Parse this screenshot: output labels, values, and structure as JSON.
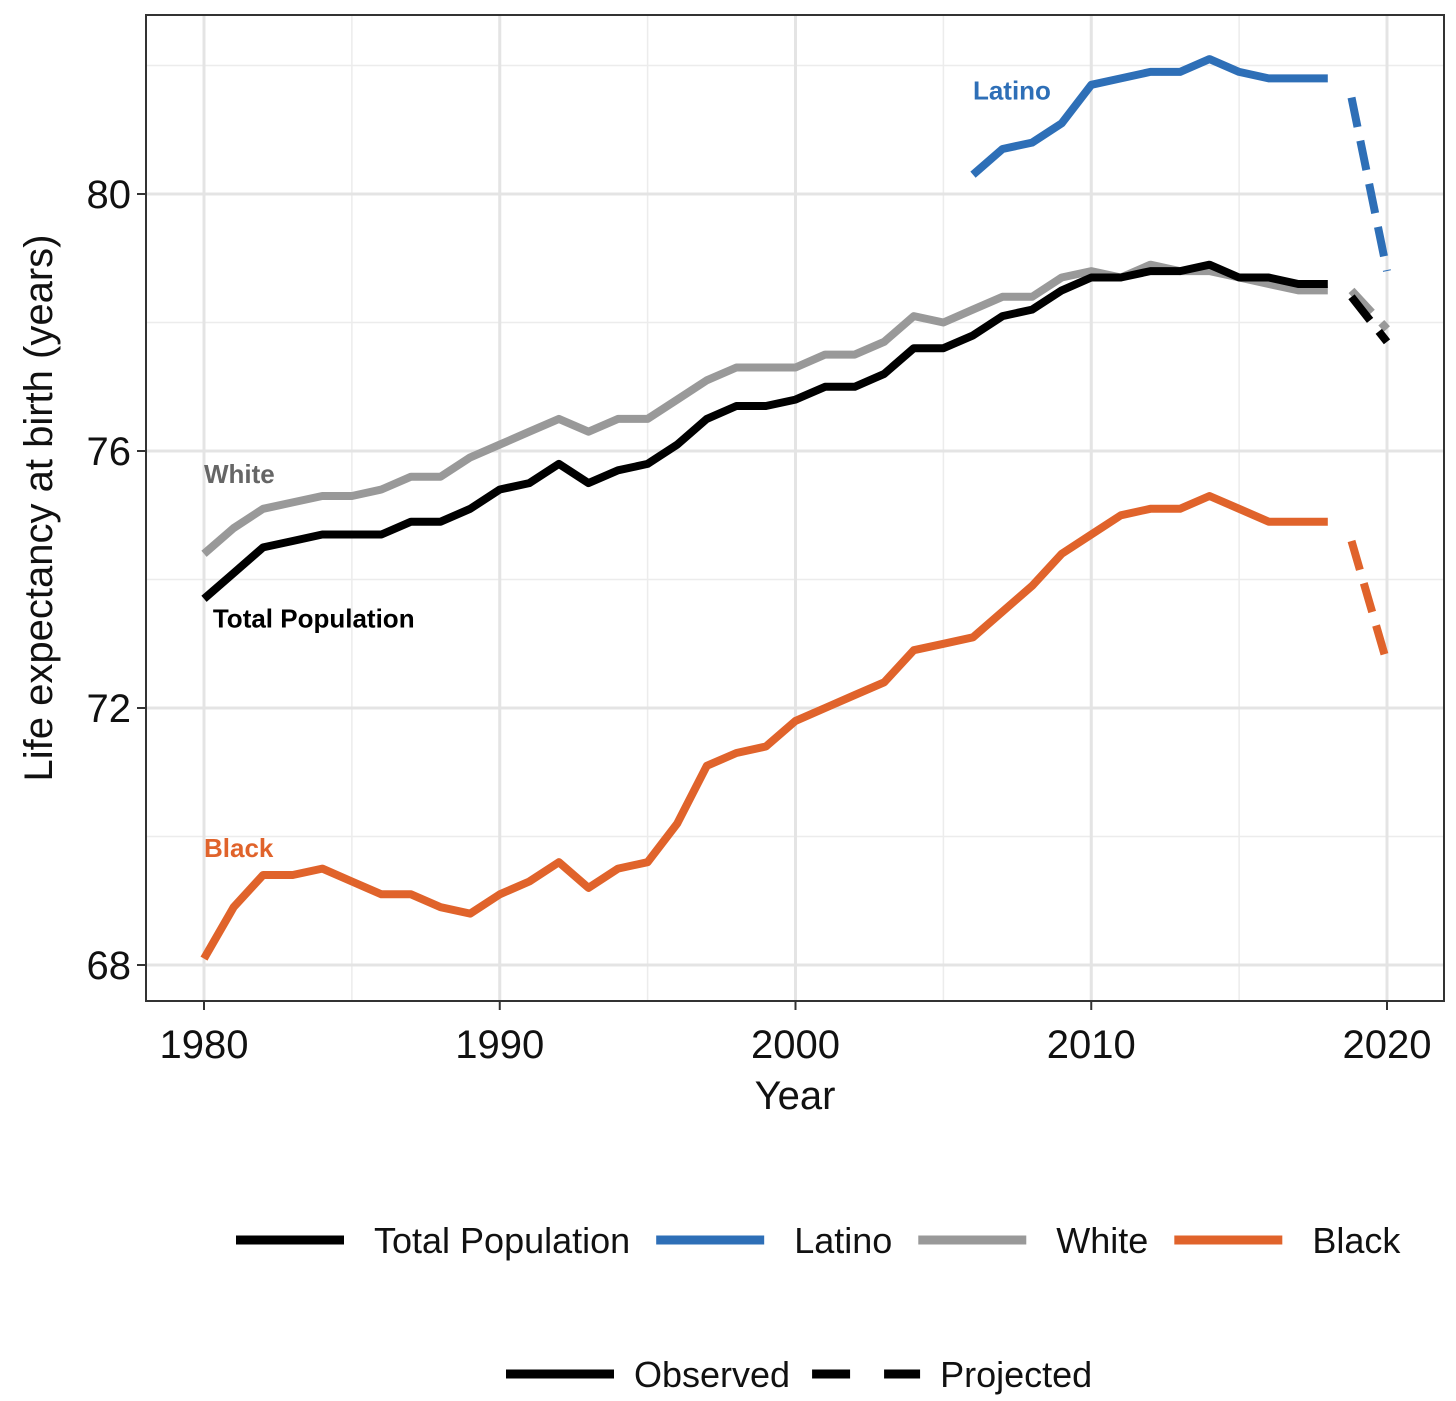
{
  "chart_data": {
    "type": "line",
    "xlabel": "Year",
    "ylabel": "Life expectancy at birth (years)",
    "xlim": [
      1978,
      2020
    ],
    "ylim": [
      67.5,
      82.9
    ],
    "x_ticks": [
      1980,
      1990,
      2000,
      2010,
      2020
    ],
    "y_ticks": [
      68,
      72,
      76,
      80
    ],
    "grid": true,
    "series": [
      {
        "name": "Total Population",
        "color": "#000000",
        "observed": {
          "x": [
            1980,
            1981,
            1982,
            1983,
            1984,
            1985,
            1986,
            1987,
            1988,
            1989,
            1990,
            1991,
            1992,
            1993,
            1994,
            1995,
            1996,
            1997,
            1998,
            1999,
            2000,
            2001,
            2002,
            2003,
            2004,
            2005,
            2006,
            2007,
            2008,
            2009,
            2010,
            2011,
            2012,
            2013,
            2014,
            2015,
            2016,
            2017,
            2018
          ],
          "y": [
            73.7,
            74.1,
            74.5,
            74.6,
            74.7,
            74.7,
            74.7,
            74.9,
            74.9,
            75.1,
            75.4,
            75.5,
            75.8,
            75.5,
            75.7,
            75.8,
            76.1,
            76.5,
            76.7,
            76.7,
            76.8,
            77.0,
            77.0,
            77.2,
            77.6,
            77.6,
            77.8,
            78.1,
            78.2,
            78.5,
            78.7,
            78.7,
            78.8,
            78.8,
            78.9,
            78.7,
            78.7,
            78.6,
            78.6
          ]
        },
        "projected": {
          "x": [
            2018.8,
            2020
          ],
          "y": [
            78.4,
            77.7
          ]
        }
      },
      {
        "name": "Latino",
        "color": "#2e6fb7",
        "observed": {
          "x": [
            2006,
            2007,
            2008,
            2009,
            2010,
            2011,
            2012,
            2013,
            2014,
            2015,
            2016,
            2017,
            2018
          ],
          "y": [
            80.3,
            80.7,
            80.8,
            81.1,
            81.7,
            81.8,
            81.9,
            81.9,
            82.1,
            81.9,
            81.8,
            81.8,
            81.8
          ]
        },
        "projected": {
          "x": [
            2018.8,
            2020
          ],
          "y": [
            81.5,
            78.8
          ]
        }
      },
      {
        "name": "White",
        "color": "#999999",
        "observed": {
          "x": [
            1980,
            1981,
            1982,
            1983,
            1984,
            1985,
            1986,
            1987,
            1988,
            1989,
            1990,
            1991,
            1992,
            1993,
            1994,
            1995,
            1996,
            1997,
            1998,
            1999,
            2000,
            2001,
            2002,
            2003,
            2004,
            2005,
            2006,
            2007,
            2008,
            2009,
            2010,
            2011,
            2012,
            2013,
            2014,
            2015,
            2016,
            2017,
            2018
          ],
          "y": [
            74.4,
            74.8,
            75.1,
            75.2,
            75.3,
            75.3,
            75.4,
            75.6,
            75.6,
            75.9,
            76.1,
            76.3,
            76.5,
            76.3,
            76.5,
            76.5,
            76.8,
            77.1,
            77.3,
            77.3,
            77.3,
            77.5,
            77.5,
            77.7,
            78.1,
            78.0,
            78.2,
            78.4,
            78.4,
            78.7,
            78.8,
            78.7,
            78.9,
            78.8,
            78.8,
            78.7,
            78.6,
            78.5,
            78.5
          ]
        },
        "projected": {
          "x": [
            2018.8,
            2020
          ],
          "y": [
            78.5,
            77.9
          ]
        }
      },
      {
        "name": "Black",
        "color": "#e0632b",
        "observed": {
          "x": [
            1980,
            1981,
            1982,
            1983,
            1984,
            1985,
            1986,
            1987,
            1988,
            1989,
            1990,
            1991,
            1992,
            1993,
            1994,
            1995,
            1996,
            1997,
            1998,
            1999,
            2000,
            2001,
            2002,
            2003,
            2004,
            2005,
            2006,
            2007,
            2008,
            2009,
            2010,
            2011,
            2012,
            2013,
            2014,
            2015,
            2016,
            2017,
            2018
          ],
          "y": [
            68.1,
            68.9,
            69.4,
            69.4,
            69.5,
            69.3,
            69.1,
            69.1,
            68.9,
            68.8,
            69.1,
            69.3,
            69.6,
            69.2,
            69.5,
            69.6,
            70.2,
            71.1,
            71.3,
            71.4,
            71.8,
            72.0,
            72.2,
            72.4,
            72.9,
            73.0,
            73.1,
            73.5,
            73.9,
            74.4,
            74.7,
            75.0,
            75.1,
            75.1,
            75.3,
            75.1,
            74.9,
            74.9,
            74.9
          ]
        },
        "projected": {
          "x": [
            2018.8,
            2020
          ],
          "y": [
            74.6,
            72.7
          ]
        }
      }
    ],
    "annotations": [
      {
        "text": "Latino",
        "series": "Latino",
        "x": 2006.0,
        "y": 81.47,
        "color": "#2e6fb7"
      },
      {
        "text": "White",
        "series": "White",
        "x": 1980.0,
        "y": 75.5,
        "color": "#666666"
      },
      {
        "text": "Total Population",
        "series": "Total Population",
        "x": 1980.3,
        "y": 73.25,
        "color": "#000000"
      },
      {
        "text": "Black",
        "series": "Black",
        "x": 1980.0,
        "y": 69.68,
        "color": "#e0632b"
      }
    ],
    "legend": {
      "placement": "bottom",
      "series_entries": [
        "Total Population",
        "Latino",
        "White",
        "Black"
      ],
      "linetype_entries": [
        {
          "label": "Observed",
          "style": "solid"
        },
        {
          "label": "Projected",
          "style": "dashed"
        }
      ]
    }
  }
}
